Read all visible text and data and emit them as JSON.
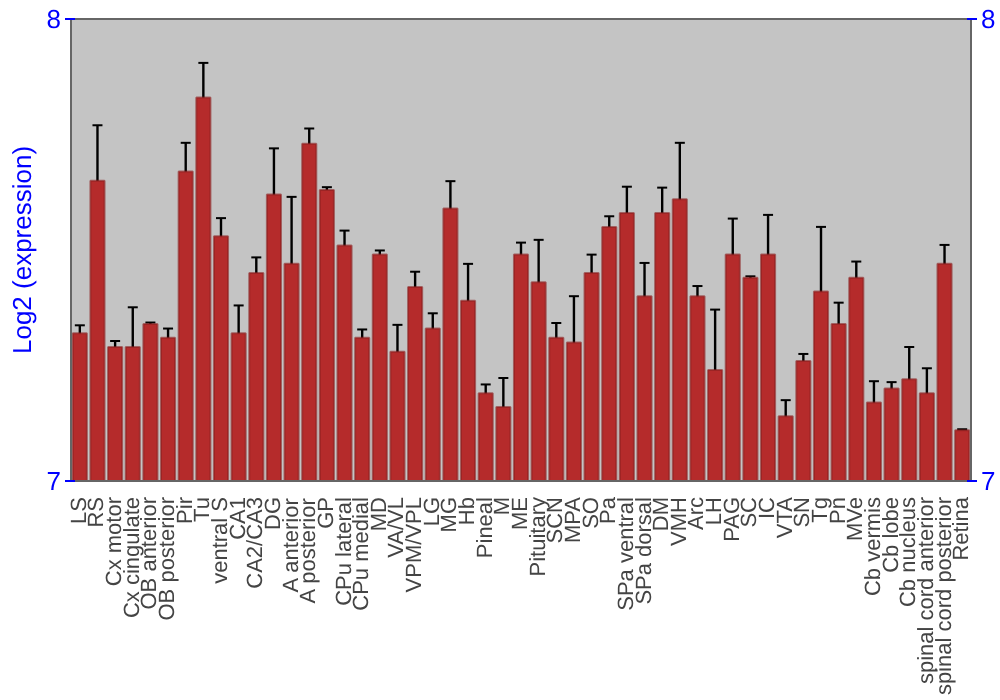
{
  "chart_data": {
    "type": "bar",
    "ylabel": "Log2 (expression)",
    "categories": [
      "LS",
      "RS",
      "Cx motor",
      "Cx cingulate",
      "OB anterior",
      "OB posterior",
      "Pir",
      "Tu",
      "ventral S",
      "CA1",
      "CA2/CA3",
      "DG",
      "A anterior",
      "A posterior",
      "GP",
      "CPu lateral",
      "CPu medial",
      "MD",
      "VA/VL",
      "VPM/VPL",
      "LG",
      "MG",
      "Hb",
      "Pineal",
      "M",
      "ME",
      "Pituitary",
      "SCN",
      "MPA",
      "SO",
      "Pa",
      "SPa ventral",
      "SPa dorsal",
      "DM",
      "VMH",
      "Arc",
      "LH",
      "PAG",
      "SC",
      "IC",
      "VTA",
      "SN",
      "Tg",
      "Pn",
      "MVe",
      "Cb vermis",
      "Cb lobe",
      "Cb nucleus",
      "spinal cord anterior",
      "spinal cord posterior",
      "Retina"
    ],
    "values": [
      7.32,
      7.65,
      7.29,
      7.29,
      7.34,
      7.31,
      7.67,
      7.83,
      7.53,
      7.32,
      7.45,
      7.62,
      7.47,
      7.73,
      7.63,
      7.51,
      7.31,
      7.49,
      7.28,
      7.42,
      7.33,
      7.59,
      7.39,
      7.19,
      7.16,
      7.49,
      7.43,
      7.31,
      7.3,
      7.45,
      7.55,
      7.58,
      7.4,
      7.58,
      7.61,
      7.4,
      7.24,
      7.49,
      7.44,
      7.49,
      7.14,
      7.26,
      7.41,
      7.34,
      7.44,
      7.17,
      7.2,
      7.22,
      7.19,
      7.47,
      7.11
    ],
    "errors": [
      0.017,
      0.12,
      0.013,
      0.086,
      0.003,
      0.02,
      0.062,
      0.075,
      0.039,
      0.06,
      0.034,
      0.1,
      0.145,
      0.033,
      0.006,
      0.032,
      0.018,
      0.009,
      0.058,
      0.033,
      0.033,
      0.059,
      0.08,
      0.019,
      0.063,
      0.026,
      0.092,
      0.032,
      0.1,
      0.04,
      0.023,
      0.057,
      0.072,
      0.055,
      0.122,
      0.022,
      0.131,
      0.078,
      0.003,
      0.086,
      0.035,
      0.015,
      0.14,
      0.046,
      0.035,
      0.046,
      0.014,
      0.07,
      0.054,
      0.041,
      0.002
    ],
    "color": "#b52b2b",
    "ylim": [
      7,
      8
    ],
    "yticks": [
      7,
      8
    ],
    "y2lim": [
      7,
      8
    ],
    "y2ticks": [
      7,
      8
    ],
    "grid": false
  }
}
